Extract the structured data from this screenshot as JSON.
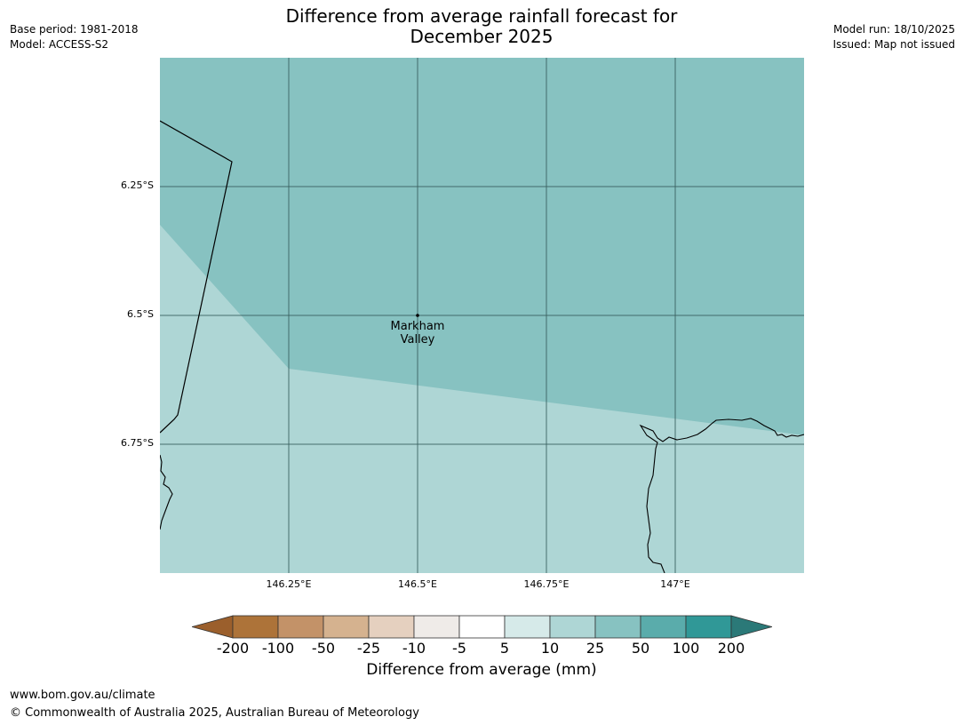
{
  "header": {
    "title_line1": "Difference from average rainfall forecast for",
    "title_line2": "December 2025",
    "base_period": "Base period: 1981-2018",
    "model": "Model: ACCESS-S2",
    "model_run": "Model run: 18/10/2025",
    "issued": "Issued: Map not issued"
  },
  "map": {
    "extent": {
      "lon": [
        146.0,
        147.25
      ],
      "lat": [
        -6.0,
        -7.0
      ]
    },
    "gridlines": true,
    "lat_labels": [
      "6.25°S",
      "6.5°S",
      "6.75°S"
    ],
    "lon_labels": [
      "146.25°E",
      "146.5°E",
      "146.75°E",
      "147°E"
    ],
    "place": {
      "name_line1": "Markham",
      "name_line2": "Valley"
    },
    "regions": [
      {
        "category": "25 to 50",
        "color": "#87c2c1"
      },
      {
        "category": "10 to 25",
        "color": "#aed6d5"
      }
    ]
  },
  "colorbar": {
    "title": "Difference from average (mm)",
    "ticks": [
      "-200",
      "-100",
      "-50",
      "-25",
      "-10",
      "-5",
      "5",
      "10",
      "25",
      "50",
      "100",
      "200"
    ],
    "colors": [
      "#9b5f2c",
      "#ad7339",
      "#c39268",
      "#d5b28f",
      "#e5d0bf",
      "#efebe8",
      "#ffffff",
      "#d6eae9",
      "#aed6d5",
      "#87c2c1",
      "#5aacab",
      "#309897",
      "#2b7978"
    ]
  },
  "footer": {
    "url": "www.bom.gov.au/climate",
    "copyright": "© Commonwealth of Australia 2025, Australian Bureau of Meteorology"
  }
}
